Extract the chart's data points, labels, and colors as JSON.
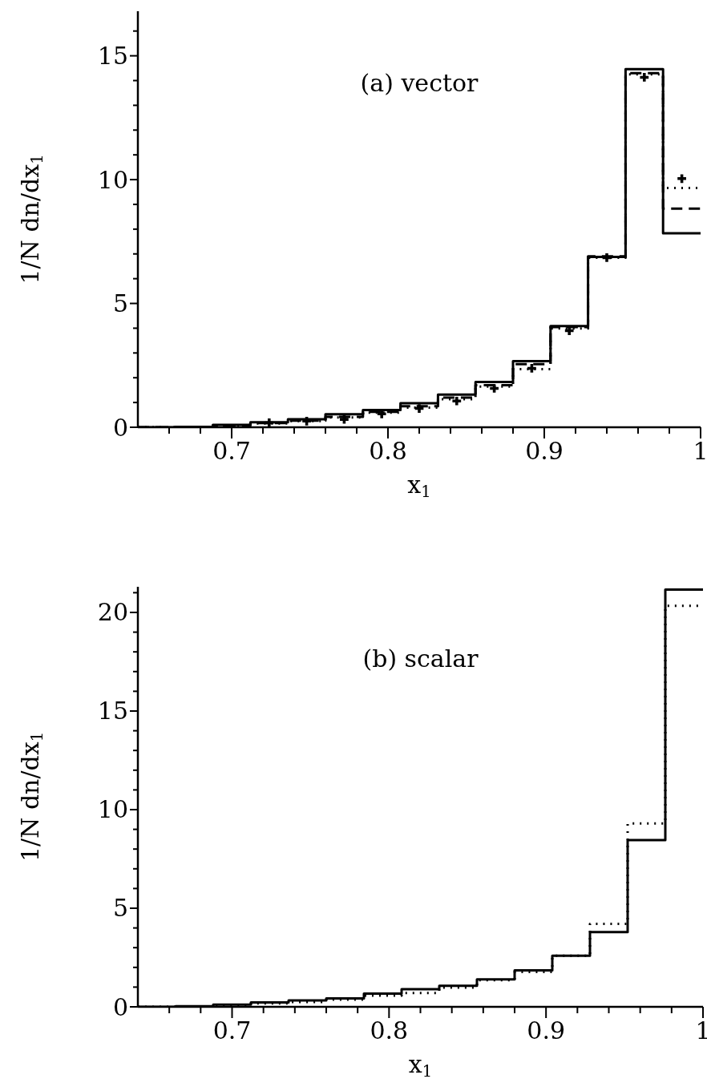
{
  "chart_data": [
    {
      "type": "step",
      "title": "(a) vector",
      "xlabel": "x$_{1}$",
      "ylabel": "1/N dn/dx$_{1}$",
      "x": [
        0.64,
        0.664,
        0.688,
        0.712,
        0.736,
        0.76,
        0.784,
        0.808,
        0.832,
        0.856,
        0.88,
        0.904,
        0.928,
        0.952,
        0.976,
        1.0
      ],
      "series": [
        {
          "color": "#000000",
          "line_style": "solid",
          "values": [
            0,
            0.02,
            0.1,
            0.2,
            0.32,
            0.53,
            0.7,
            0.97,
            1.32,
            1.83,
            2.67,
            4.09,
            6.88,
            14.46,
            7.83,
            7.83
          ]
        },
        {
          "color": "#000000",
          "line_style": "dotted",
          "values": [
            0,
            0.02,
            0.06,
            0.15,
            0.25,
            0.4,
            0.59,
            0.79,
            1.13,
            1.64,
            2.35,
            3.99,
            6.85,
            14.25,
            9.66,
            9.66
          ]
        },
        {
          "color": "#000000",
          "line_style": "dashed",
          "values": [
            0,
            0.02,
            0.07,
            0.17,
            0.27,
            0.42,
            0.62,
            0.85,
            1.2,
            1.7,
            2.55,
            4.05,
            6.9,
            14.3,
            8.83,
            8.83
          ]
        },
        {
          "type": "scatter",
          "marker": "cross",
          "color": "#000000",
          "x": [
            0.724,
            0.748,
            0.772,
            0.796,
            0.82,
            0.844,
            0.868,
            0.892,
            0.916,
            0.94,
            0.964,
            0.988
          ],
          "values": [
            0.18,
            0.25,
            0.32,
            0.54,
            0.76,
            1.06,
            1.57,
            2.38,
            3.9,
            6.85,
            14.13,
            10.04
          ]
        }
      ],
      "xlim": [
        0.64,
        1.0
      ],
      "xticks": [
        {
          "value": 0.66,
          "label": null
        },
        {
          "value": 0.68,
          "label": null
        },
        0.7,
        {
          "value": 0.72,
          "label": null
        },
        {
          "value": 0.74,
          "label": null
        },
        {
          "value": 0.76,
          "label": null
        },
        {
          "value": 0.78,
          "label": null
        },
        0.8,
        {
          "value": 0.82,
          "label": null
        },
        {
          "value": 0.84,
          "label": null
        },
        {
          "value": 0.86,
          "label": null
        },
        {
          "value": 0.88,
          "label": null
        },
        0.9,
        {
          "value": 0.92,
          "label": null
        },
        {
          "value": 0.94,
          "label": null
        },
        {
          "value": 0.96,
          "label": null
        },
        {
          "value": 0.98,
          "label": null
        },
        1
      ],
      "ylim": [
        0,
        16.8
      ],
      "yticks": [
        0,
        {
          "value": 1,
          "label": null
        },
        {
          "value": 2,
          "label": null
        },
        {
          "value": 3,
          "label": null
        },
        {
          "value": 4,
          "label": null
        },
        5,
        {
          "value": 6,
          "label": null
        },
        {
          "value": 7,
          "label": null
        },
        {
          "value": 8,
          "label": null
        },
        {
          "value": 9,
          "label": null
        },
        10,
        {
          "value": 11,
          "label": null
        },
        {
          "value": 12,
          "label": null
        },
        {
          "value": 13,
          "label": null
        },
        {
          "value": 14,
          "label": null
        },
        15,
        {
          "value": 16,
          "label": null
        }
      ]
    },
    {
      "type": "step",
      "title": "(b) scalar",
      "xlabel": "x$_{1}$",
      "ylabel": "1/N dn/dx$_{1}$",
      "x": [
        0.64,
        0.664,
        0.688,
        0.712,
        0.736,
        0.76,
        0.784,
        0.808,
        0.832,
        0.856,
        0.88,
        0.904,
        0.928,
        0.952,
        0.976,
        1.0
      ],
      "series": [
        {
          "color": "#000000",
          "line_style": "solid",
          "values": [
            0,
            0.03,
            0.11,
            0.22,
            0.33,
            0.43,
            0.67,
            0.89,
            1.07,
            1.39,
            1.85,
            2.59,
            3.79,
            8.45,
            21.16,
            21.16
          ]
        },
        {
          "color": "#000000",
          "line_style": "dotted",
          "values": [
            0,
            0.02,
            0.07,
            0.17,
            0.24,
            0.37,
            0.57,
            0.7,
            0.98,
            1.35,
            1.77,
            2.59,
            4.21,
            9.3,
            20.33,
            20.33
          ]
        }
      ],
      "xlim": [
        0.64,
        1.0
      ],
      "xticks": [
        {
          "value": 0.66,
          "label": null
        },
        {
          "value": 0.68,
          "label": null
        },
        0.7,
        {
          "value": 0.72,
          "label": null
        },
        {
          "value": 0.74,
          "label": null
        },
        {
          "value": 0.76,
          "label": null
        },
        {
          "value": 0.78,
          "label": null
        },
        0.8,
        {
          "value": 0.82,
          "label": null
        },
        {
          "value": 0.84,
          "label": null
        },
        {
          "value": 0.86,
          "label": null
        },
        {
          "value": 0.88,
          "label": null
        },
        0.9,
        {
          "value": 0.92,
          "label": null
        },
        {
          "value": 0.94,
          "label": null
        },
        {
          "value": 0.96,
          "label": null
        },
        {
          "value": 0.98,
          "label": null
        },
        1
      ],
      "ylim": [
        0,
        21.3
      ],
      "yticks": [
        0,
        {
          "value": 1,
          "label": null
        },
        {
          "value": 2,
          "label": null
        },
        {
          "value": 3,
          "label": null
        },
        {
          "value": 4,
          "label": null
        },
        5,
        {
          "value": 6,
          "label": null
        },
        {
          "value": 7,
          "label": null
        },
        {
          "value": 8,
          "label": null
        },
        {
          "value": 9,
          "label": null
        },
        10,
        {
          "value": 11,
          "label": null
        },
        {
          "value": 12,
          "label": null
        },
        {
          "value": 13,
          "label": null
        },
        {
          "value": 14,
          "label": null
        },
        15,
        {
          "value": 16,
          "label": null
        },
        {
          "value": 17,
          "label": null
        },
        {
          "value": 18,
          "label": null
        },
        {
          "value": 19,
          "label": null
        },
        20,
        {
          "value": 21,
          "label": null
        }
      ]
    }
  ]
}
